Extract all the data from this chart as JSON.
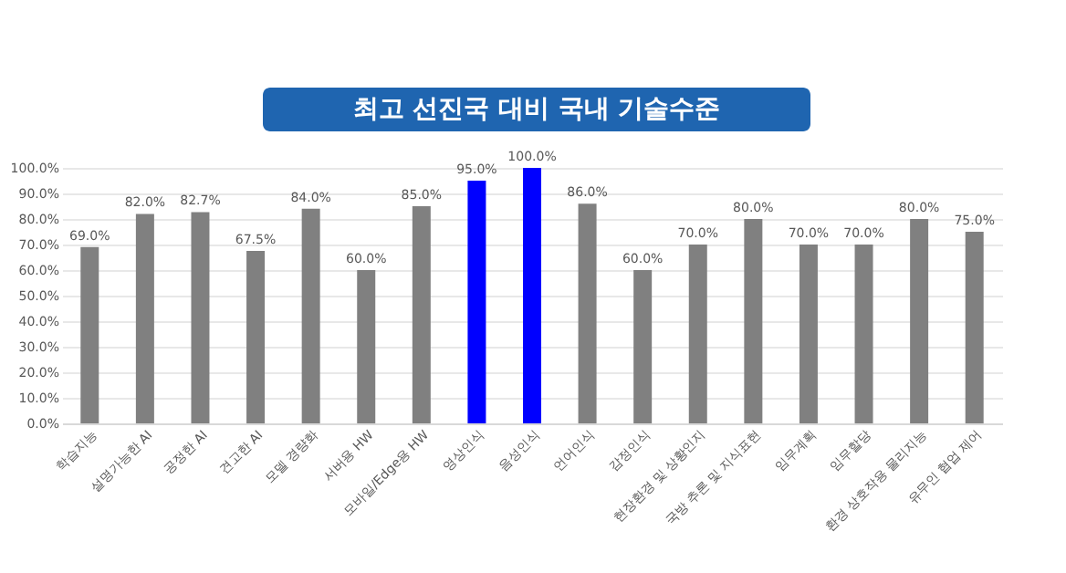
{
  "chart_data": {
    "type": "bar",
    "title": "최고 선진국 대비 국내 기술수준",
    "categories": [
      "학습지능",
      "설명가능한 AI",
      "공정한 AI",
      "견고한 AI",
      "모델 경량화",
      "서버용 HW",
      "모바일/Edge용 HW",
      "영상인식",
      "음성인식",
      "언어인식",
      "감정인식",
      "현장환경 및 상황인지",
      "국방 추론 및 지식표현",
      "임무계획",
      "임무할당",
      "환경 상호작용 물리지능",
      "유무인 협업 제어"
    ],
    "values": [
      69.0,
      82.0,
      82.7,
      67.5,
      84.0,
      60.0,
      85.0,
      95.0,
      100.0,
      86.0,
      60.0,
      70.0,
      80.0,
      70.0,
      70.0,
      80.0,
      75.0
    ],
    "colors": [
      "#808080",
      "#808080",
      "#808080",
      "#808080",
      "#808080",
      "#808080",
      "#808080",
      "#0000ff",
      "#0000ff",
      "#808080",
      "#808080",
      "#808080",
      "#808080",
      "#808080",
      "#808080",
      "#808080",
      "#808080"
    ],
    "value_labels": [
      "69.0%",
      "82.0%",
      "82.7%",
      "67.5%",
      "84.0%",
      "60.0%",
      "85.0%",
      "95.0%",
      "100.0%",
      "86.0%",
      "60.0%",
      "70.0%",
      "80.0%",
      "70.0%",
      "70.0%",
      "80.0%",
      "75.0%"
    ],
    "ylim": [
      0,
      100
    ],
    "yticks": [
      {
        "value": 0,
        "label": "0.0%"
      },
      {
        "value": 10,
        "label": "10.0%"
      },
      {
        "value": 20,
        "label": "20.0%"
      },
      {
        "value": 30,
        "label": "30.0%"
      },
      {
        "value": 40,
        "label": "40.0%"
      },
      {
        "value": 50,
        "label": "50.0%"
      },
      {
        "value": 60,
        "label": "60.0%"
      },
      {
        "value": 70,
        "label": "70.0%"
      },
      {
        "value": 80,
        "label": "80.0%"
      },
      {
        "value": 90,
        "label": "90.0%"
      },
      {
        "value": 100,
        "label": "100.0%"
      }
    ],
    "grid": "y"
  }
}
